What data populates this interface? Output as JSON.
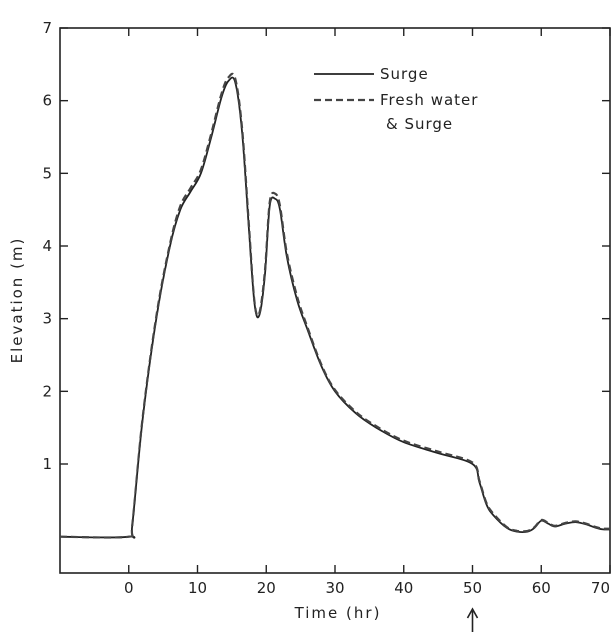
{
  "chart_data": {
    "type": "line",
    "xlabel": "Time (hr)",
    "ylabel": "Elevation (m)",
    "xlim": [
      -10,
      70
    ],
    "ylim": [
      -0.5,
      7
    ],
    "x_ticks": [
      0,
      10,
      20,
      30,
      40,
      50,
      60,
      70
    ],
    "y_ticks": [
      1,
      2,
      3,
      4,
      5,
      6,
      7
    ],
    "legend_position": "top-right",
    "annotation": {
      "type": "arrow",
      "x": 50
    },
    "series": [
      {
        "name": "Surge",
        "style": "solid",
        "x": [
          -10,
          0,
          0.5,
          2,
          4,
          6,
          7.5,
          9,
          10.5,
          12,
          13.5,
          14.5,
          15.5,
          16.5,
          17.5,
          18.3,
          19,
          19.8,
          20.5,
          21.3,
          22,
          23,
          24.5,
          26,
          28,
          30,
          33,
          36,
          40,
          45,
          50,
          51,
          52,
          53,
          55,
          56.5,
          58,
          59,
          60,
          61,
          62,
          63.5,
          65,
          66.5,
          68,
          69,
          70
        ],
        "y": [
          0,
          0,
          0.15,
          1.6,
          3.0,
          4.0,
          4.5,
          4.75,
          5.0,
          5.5,
          6.05,
          6.27,
          6.25,
          5.55,
          4.2,
          3.2,
          3.05,
          3.6,
          4.55,
          4.65,
          4.5,
          3.85,
          3.25,
          2.85,
          2.35,
          2.0,
          1.7,
          1.5,
          1.3,
          1.15,
          1.0,
          0.75,
          0.45,
          0.3,
          0.12,
          0.07,
          0.07,
          0.12,
          0.22,
          0.18,
          0.14,
          0.18,
          0.2,
          0.17,
          0.12,
          0.1,
          0.1
        ]
      },
      {
        "name": "Fresh water & Surge",
        "style": "dashed",
        "x": [
          -10,
          0,
          0.5,
          2,
          4,
          6,
          7.5,
          9,
          10.5,
          12,
          13.5,
          14.5,
          15.5,
          16.5,
          17.5,
          18.3,
          19,
          19.8,
          20.5,
          21.3,
          22,
          23,
          24.5,
          26,
          28,
          30,
          33,
          36,
          40,
          45,
          50,
          51,
          52,
          53,
          55,
          56.5,
          58,
          59,
          60,
          61,
          62,
          63.5,
          65,
          66.5,
          68,
          69,
          70
        ],
        "y": [
          0,
          0,
          0.15,
          1.62,
          3.03,
          4.03,
          4.55,
          4.8,
          5.05,
          5.55,
          6.1,
          6.32,
          6.3,
          5.6,
          4.25,
          3.22,
          3.08,
          3.65,
          4.6,
          4.72,
          4.55,
          3.9,
          3.3,
          2.88,
          2.37,
          2.02,
          1.72,
          1.52,
          1.32,
          1.17,
          1.02,
          0.77,
          0.47,
          0.32,
          0.13,
          0.08,
          0.08,
          0.13,
          0.23,
          0.19,
          0.15,
          0.19,
          0.21,
          0.18,
          0.13,
          0.11,
          0.11
        ]
      }
    ],
    "legend": [
      {
        "label": "Surge",
        "style": "solid"
      },
      {
        "label": "Fresh water",
        "style": "dashed"
      },
      {
        "label": "& Surge",
        "style": "none"
      }
    ]
  }
}
